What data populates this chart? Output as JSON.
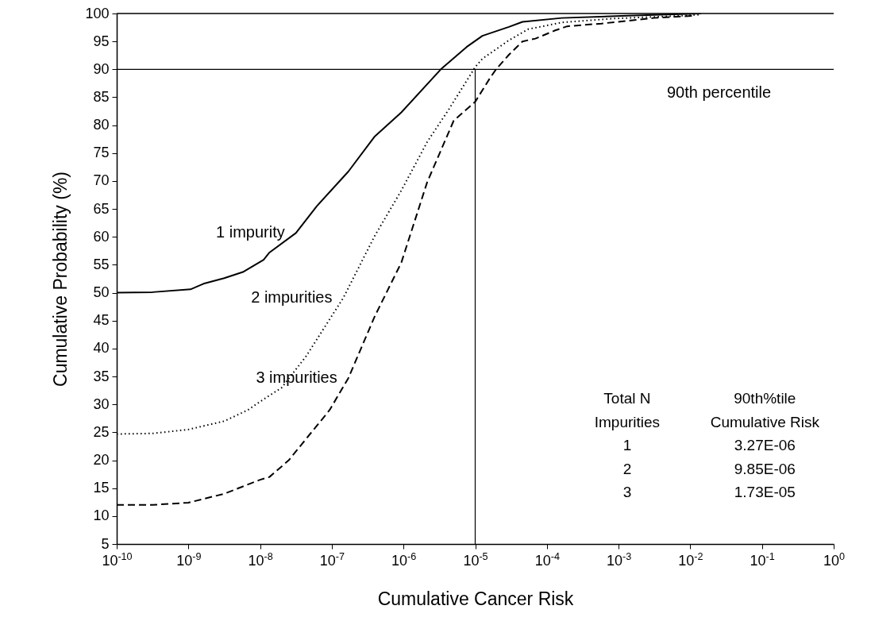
{
  "chart_data": {
    "type": "line",
    "xlabel": "Cumulative Cancer Risk",
    "ylabel": "Cumulative Probability (%)",
    "log": "x",
    "grid": false,
    "legend": false,
    "xlim": [
      1e-10,
      1
    ],
    "ylim": [
      5,
      100
    ],
    "xticks": [
      {
        "value": 1e-10,
        "label": "10$^{-10}$"
      },
      {
        "value": 1e-09,
        "label": "10$^{-9}$"
      },
      {
        "value": 1e-08,
        "label": "10$^{-8}$"
      },
      {
        "value": 1e-07,
        "label": "10$^{-7}$"
      },
      {
        "value": 1e-06,
        "label": "10$^{-6}$"
      },
      {
        "value": 1e-05,
        "label": "10$^{-5}$"
      },
      {
        "value": 0.0001,
        "label": "10$^{-4}$"
      },
      {
        "value": 0.001,
        "label": "10$^{-3}$"
      },
      {
        "value": 0.01,
        "label": "10$^{-2}$"
      },
      {
        "value": 0.1,
        "label": "10$^{-1}$"
      },
      {
        "value": 1,
        "label": "10$^{0}$"
      }
    ],
    "yticks": [
      5,
      10,
      15,
      20,
      25,
      30,
      35,
      40,
      45,
      50,
      55,
      60,
      65,
      70,
      75,
      80,
      85,
      90,
      95,
      100
    ],
    "series": [
      {
        "name": "1 impurity",
        "color": "#000000",
        "line_style": "solid",
        "x": [
          1e-10,
          3.16e-10,
          1.07e-09,
          1.62e-09,
          3.16e-09,
          5.75e-09,
          1.12e-08,
          1.35e-08,
          3.16e-08,
          6.17e-08,
          1.7e-07,
          3.98e-07,
          9.33e-07,
          3.31e-06,
          7.59e-06,
          1.26e-05,
          2.95e-05,
          4.57e-05,
          0.000162,
          0.00132,
          0.0141
        ],
        "values": [
          50,
          50.1,
          50.6,
          51.6,
          52.6,
          53.7,
          55.9,
          57.2,
          60.7,
          65.5,
          71.7,
          78,
          82.3,
          90,
          94,
          96,
          97.6,
          98.5,
          99.2,
          99.6,
          100
        ]
      },
      {
        "name": "2 impurities",
        "color": "#000000",
        "line_style": "dotted",
        "x": [
          1e-10,
          3.16e-10,
          1e-09,
          3.16e-09,
          6.76e-09,
          1e-08,
          2e-08,
          4.37e-08,
          1.45e-07,
          3.98e-07,
          9.33e-07,
          2.14e-06,
          4.27e-06,
          1e-05,
          1.26e-05,
          2.95e-05,
          5.5e-05,
          0.000162,
          0.000871,
          0.00724,
          0.0141
        ],
        "values": [
          24.7,
          24.8,
          25.5,
          27,
          29,
          30.5,
          33,
          38.6,
          49.1,
          60.2,
          68.3,
          77,
          82.8,
          90.4,
          91.9,
          95.2,
          97.2,
          98.4,
          99.1,
          99.6,
          99.8
        ]
      },
      {
        "name": "3 impurities",
        "color": "#000000",
        "line_style": "dashed",
        "x": [
          1e-10,
          3.16e-10,
          1e-09,
          3.16e-09,
          1e-08,
          1.35e-08,
          2.51e-08,
          9.33e-08,
          1.7e-07,
          3.98e-07,
          9.33e-07,
          2.14e-06,
          5.01e-06,
          1e-05,
          1.62e-05,
          1.95e-05,
          2.95e-05,
          4.57e-05,
          6.92e-05,
          0.000126,
          0.000191,
          0.000575,
          0.00309,
          0.011
        ],
        "values": [
          12,
          12,
          12.4,
          14,
          16.5,
          17,
          20,
          29,
          34.7,
          45.8,
          55.4,
          69.8,
          80.8,
          84.2,
          88.5,
          90,
          92.6,
          95,
          95.5,
          96.9,
          97.7,
          98.2,
          99.2,
          99.6
        ]
      }
    ],
    "ref_lines": [
      {
        "axis": "y",
        "value": 90,
        "label": "90th percentile"
      },
      {
        "axis": "x",
        "value": 1e-05
      }
    ],
    "annotations": [
      "Total N",
      "90th%tile",
      "Impurities",
      "Cumulative Risk",
      "1",
      "3.27E-06",
      "2",
      "9.85E-06",
      "3",
      "1.73E-05"
    ]
  }
}
